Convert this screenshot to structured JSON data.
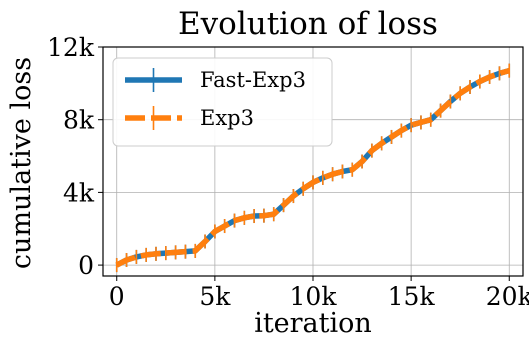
{
  "chart_data": {
    "type": "line",
    "title": "Evolution of loss",
    "xlabel": "iteration",
    "ylabel": "cumulative loss",
    "xlim": [
      -700,
      20700
    ],
    "ylim": [
      -600,
      12000
    ],
    "x_ticks": [
      0,
      5000,
      10000,
      15000,
      20000
    ],
    "x_tick_labels": [
      "0",
      "5k",
      "10k",
      "15k",
      "20k"
    ],
    "y_ticks": [
      0,
      4000,
      8000,
      12000
    ],
    "y_tick_labels": [
      "0",
      "4k",
      "8k",
      "12k"
    ],
    "grid": true,
    "legend_position": "top-left",
    "series": [
      {
        "name": "Fast-Exp3",
        "color": "#1f77b4",
        "style": "solid",
        "x": [
          0,
          500,
          1000,
          1500,
          2000,
          2500,
          3000,
          3500,
          4000,
          4500,
          5000,
          5500,
          6000,
          6500,
          7000,
          7500,
          8000,
          8500,
          9000,
          9500,
          10000,
          10500,
          11000,
          11500,
          12000,
          12500,
          13000,
          13500,
          14000,
          14500,
          15000,
          15500,
          16000,
          16500,
          17000,
          17500,
          18000,
          18500,
          19000,
          19500,
          20000
        ],
        "y": [
          0,
          280,
          450,
          560,
          620,
          660,
          700,
          740,
          780,
          1300,
          1850,
          2150,
          2450,
          2600,
          2700,
          2720,
          2800,
          3300,
          3800,
          4200,
          4550,
          4800,
          5000,
          5150,
          5250,
          5700,
          6300,
          6700,
          7050,
          7400,
          7700,
          7850,
          8000,
          8500,
          9000,
          9450,
          9800,
          10100,
          10350,
          10550,
          10700
        ]
      },
      {
        "name": "Exp3",
        "color": "#ff7f0e",
        "style": "dashed",
        "x": [
          0,
          500,
          1000,
          1500,
          2000,
          2500,
          3000,
          3500,
          4000,
          4500,
          5000,
          5500,
          6000,
          6500,
          7000,
          7500,
          8000,
          8500,
          9000,
          9500,
          10000,
          10500,
          11000,
          11500,
          12000,
          12500,
          13000,
          13500,
          14000,
          14500,
          15000,
          15500,
          16000,
          16500,
          17000,
          17500,
          18000,
          18500,
          19000,
          19500,
          20000
        ],
        "y": [
          0,
          280,
          450,
          560,
          620,
          660,
          700,
          740,
          780,
          1300,
          1850,
          2150,
          2450,
          2600,
          2700,
          2720,
          2800,
          3300,
          3800,
          4200,
          4550,
          4800,
          5000,
          5150,
          5250,
          5700,
          6300,
          6700,
          7050,
          7400,
          7700,
          7850,
          8000,
          8500,
          9000,
          9450,
          9800,
          10100,
          10350,
          10550,
          10700
        ]
      }
    ]
  }
}
